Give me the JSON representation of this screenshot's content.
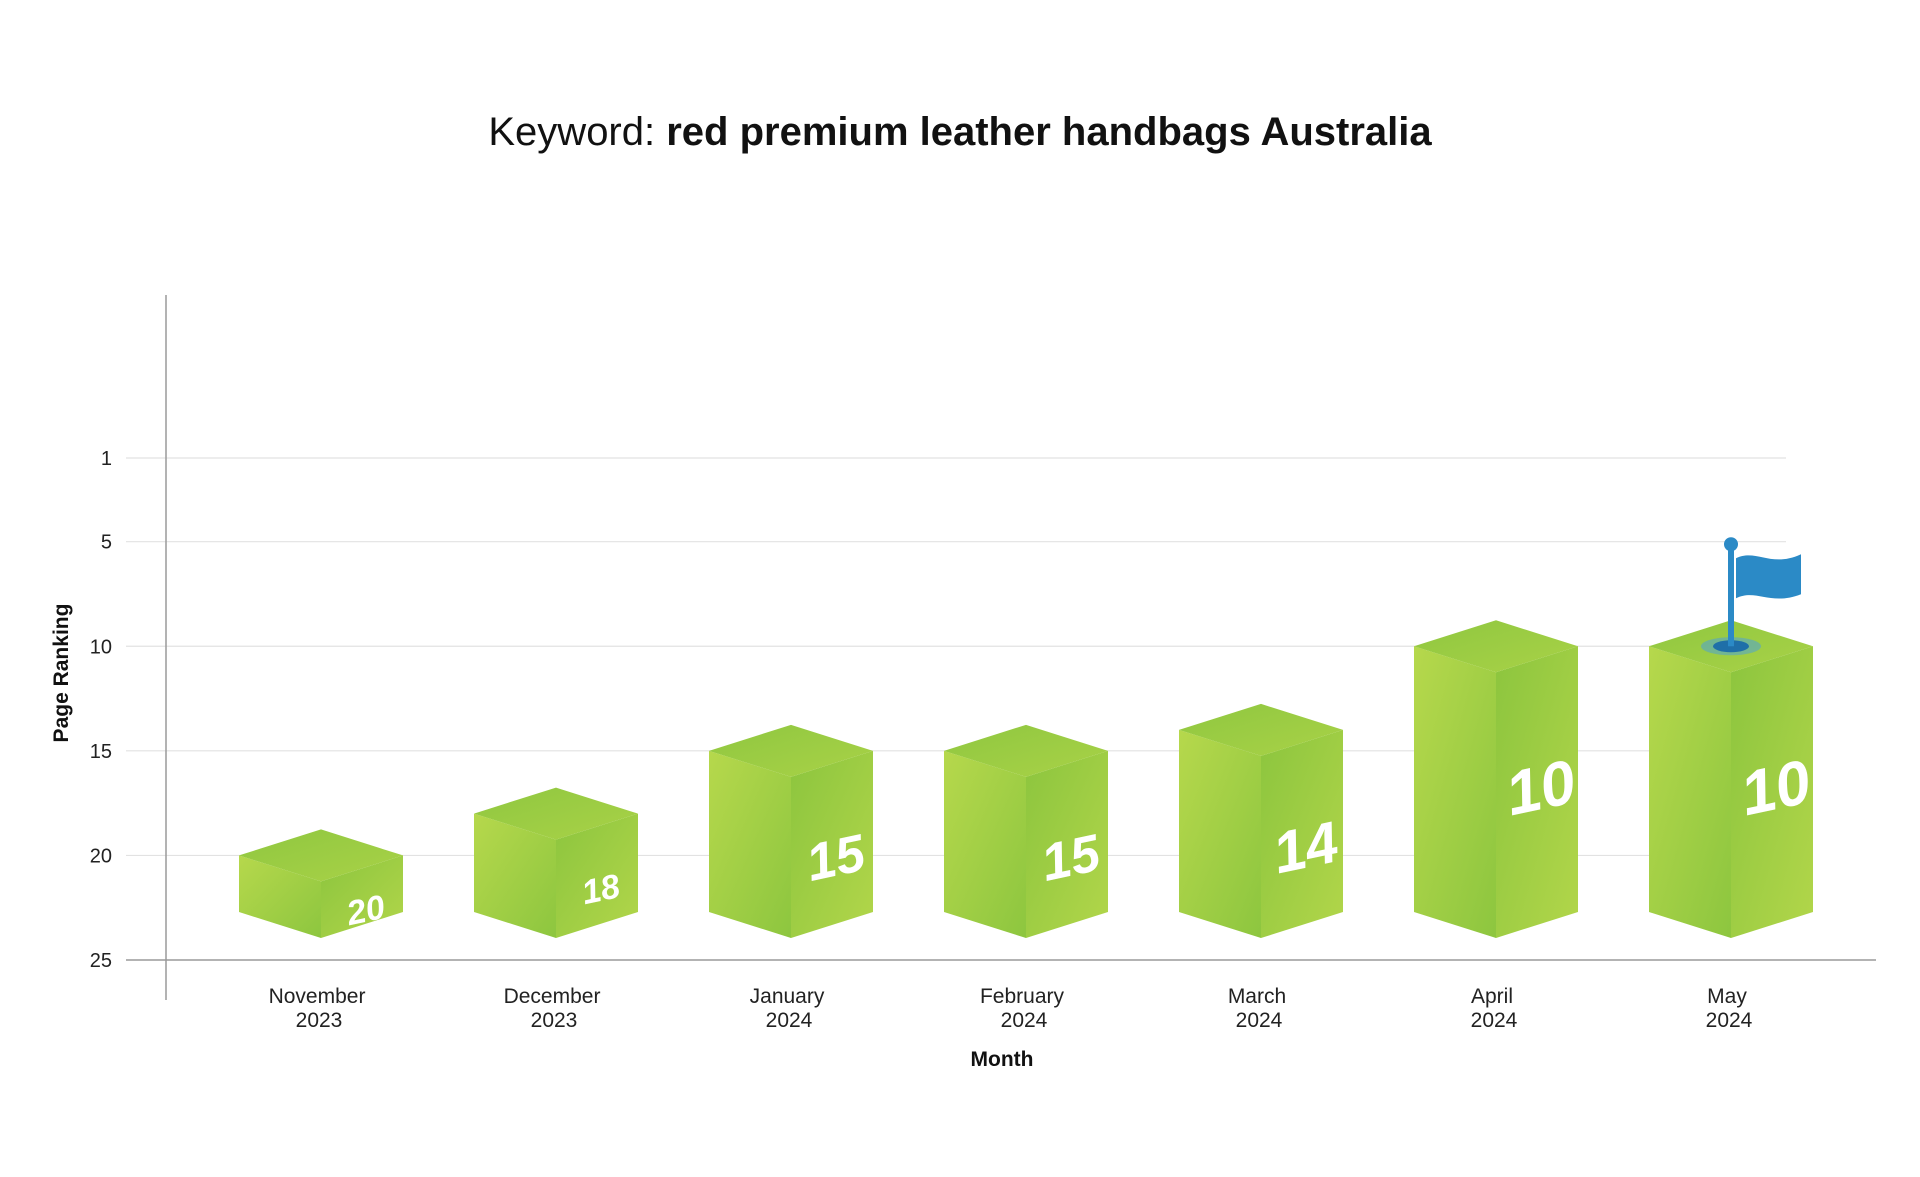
{
  "chart_data": {
    "type": "bar",
    "title_prefix": "Keyword: ",
    "title_keyword": "red premium leather handbags Australia",
    "xlabel": "Month",
    "ylabel": "Page Ranking",
    "y_inverted": true,
    "ylim": [
      25,
      1
    ],
    "yticks": [
      1,
      5,
      10,
      15,
      20,
      25
    ],
    "grid": true,
    "categories": [
      [
        "November",
        "2023"
      ],
      [
        "December",
        "2023"
      ],
      [
        "January",
        "2024"
      ],
      [
        "February",
        "2024"
      ],
      [
        "March",
        "2024"
      ],
      [
        "April",
        "2024"
      ],
      [
        "May",
        "2024"
      ]
    ],
    "values": [
      20,
      18,
      15,
      15,
      14,
      10,
      10
    ],
    "data_labels": [
      "20",
      "18",
      "15",
      "15",
      "14",
      "10",
      "10"
    ],
    "flag_on_category": "May",
    "colors": {
      "bar_top": "#9acd3c",
      "bar_left": "#a8d148",
      "bar_right": "#8ec63f",
      "flag": "#2b8ac6",
      "grid": "#e2e2e2",
      "axis": "#9a9a9a"
    }
  }
}
